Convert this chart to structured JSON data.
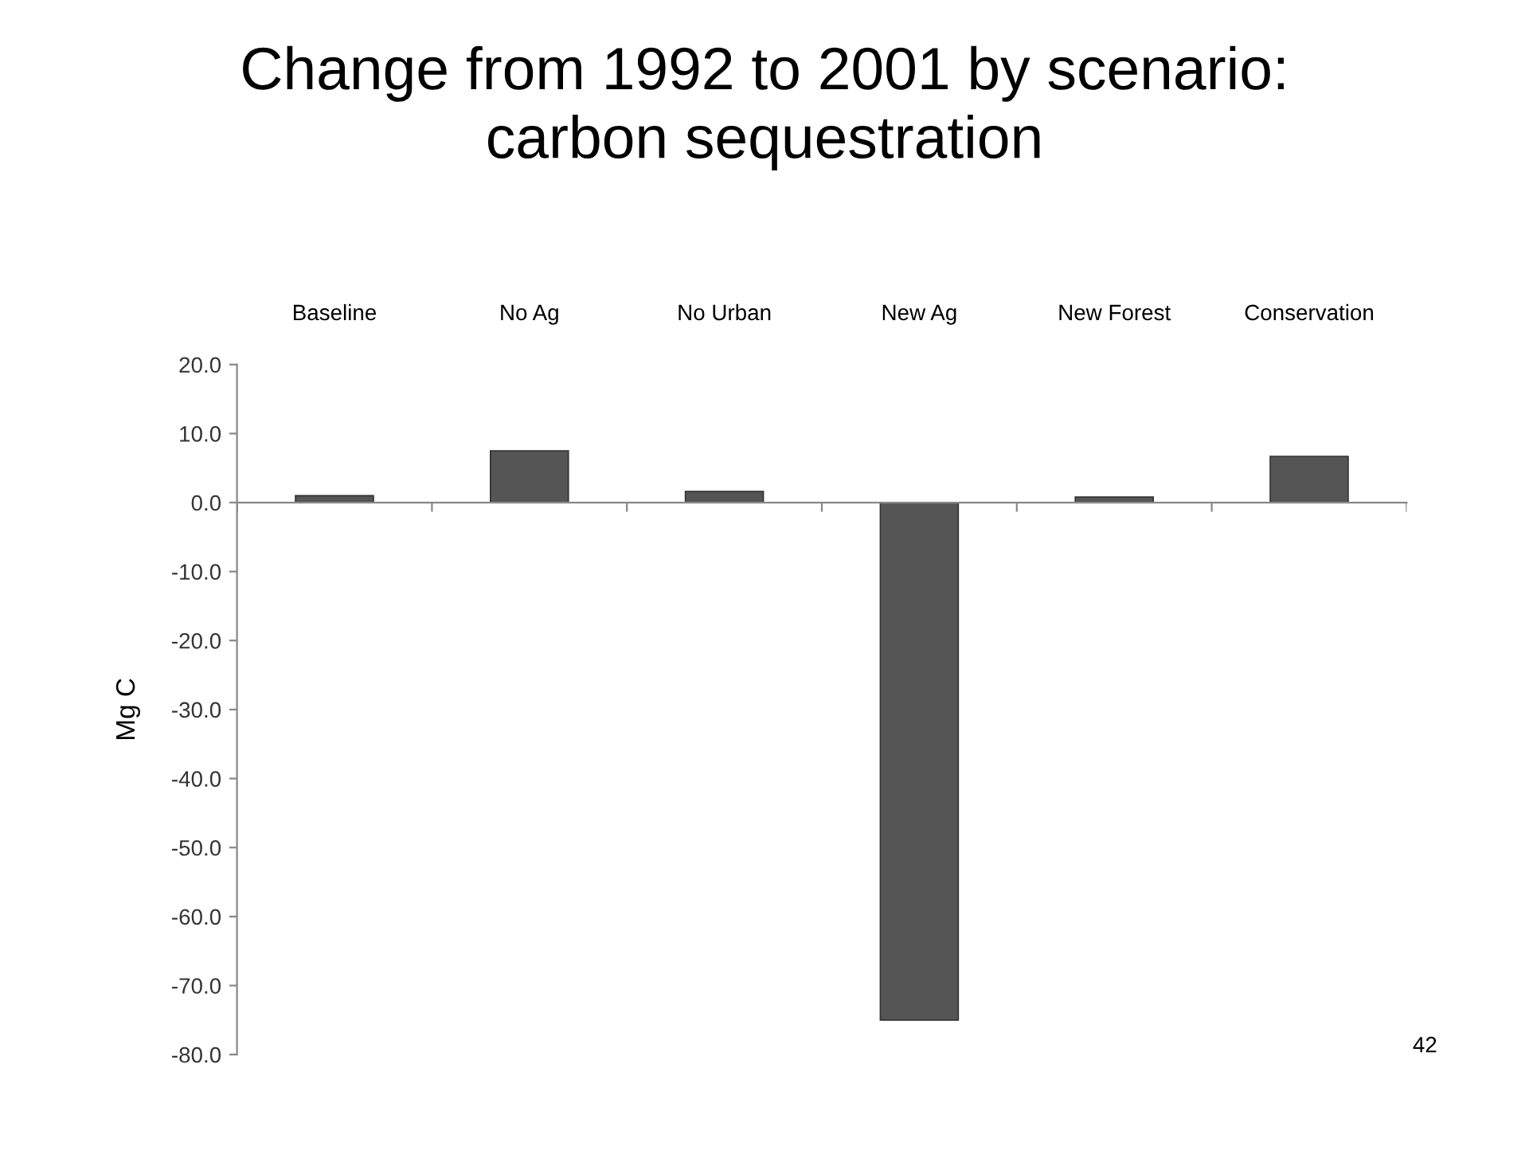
{
  "chart_data": {
    "type": "bar",
    "title": "Change from 1992 to 2001 by scenario:\ncarbon sequestration",
    "ylabel": "Mg C",
    "categories": [
      "Baseline",
      "No Ag",
      "No Urban",
      "New Ag",
      "New Forest",
      "Conservation"
    ],
    "values": [
      1.0,
      7.5,
      1.6,
      -75.0,
      0.8,
      6.7
    ],
    "color": "#555555",
    "ylim": [
      -80,
      20
    ],
    "yticks": [
      {
        "value": 20,
        "label": "20.0"
      },
      {
        "value": 10,
        "label": "10.0"
      },
      {
        "value": 0,
        "label": "0.0"
      },
      {
        "value": -10,
        "label": "-10.0"
      },
      {
        "value": -20,
        "label": "-20.0"
      },
      {
        "value": -30,
        "label": "-30.0"
      },
      {
        "value": -40,
        "label": "-40.0"
      },
      {
        "value": -50,
        "label": "-50.0"
      },
      {
        "value": -60,
        "label": "-60.0"
      },
      {
        "value": -70,
        "label": "-70.0"
      },
      {
        "value": -80,
        "label": "-80.0"
      }
    ],
    "annotations": [
      "42"
    ]
  }
}
